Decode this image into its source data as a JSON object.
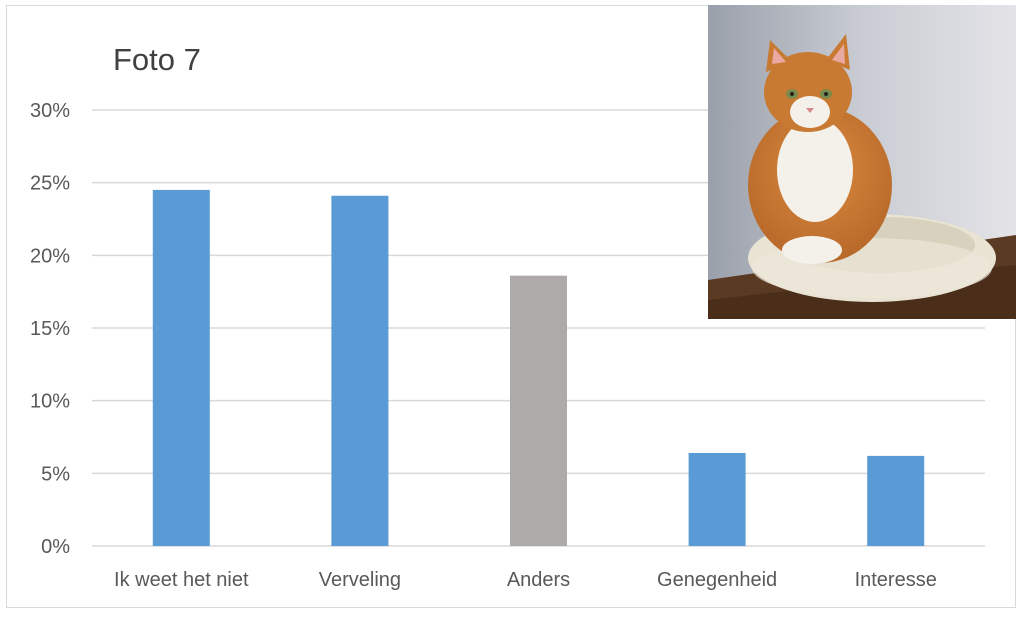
{
  "chart_data": {
    "type": "bar",
    "title": "Foto 7",
    "categories": [
      "Ik weet het niet",
      "Verveling",
      "Anders",
      "Genegenheid",
      "Interesse"
    ],
    "values": [
      24.5,
      24.1,
      18.6,
      6.4,
      6.2
    ],
    "bar_colors": [
      "#5b9bd5",
      "#5b9bd5",
      "#aeaaaa",
      "#5b9bd5",
      "#5b9bd5"
    ],
    "y_ticks": [
      "0%",
      "5%",
      "10%",
      "15%",
      "20%",
      "25%",
      "30%"
    ],
    "ylim": [
      0,
      30
    ],
    "xlabel": "",
    "ylabel": "",
    "grid": true,
    "legend": "none",
    "inset_image": "photo of orange-and-white cat sitting in round cream pet bed"
  },
  "colors": {
    "grid": "#d9d9d9",
    "text": "#595959",
    "primary_bar": "#5b9bd5",
    "secondary_bar": "#aeaaaa"
  }
}
